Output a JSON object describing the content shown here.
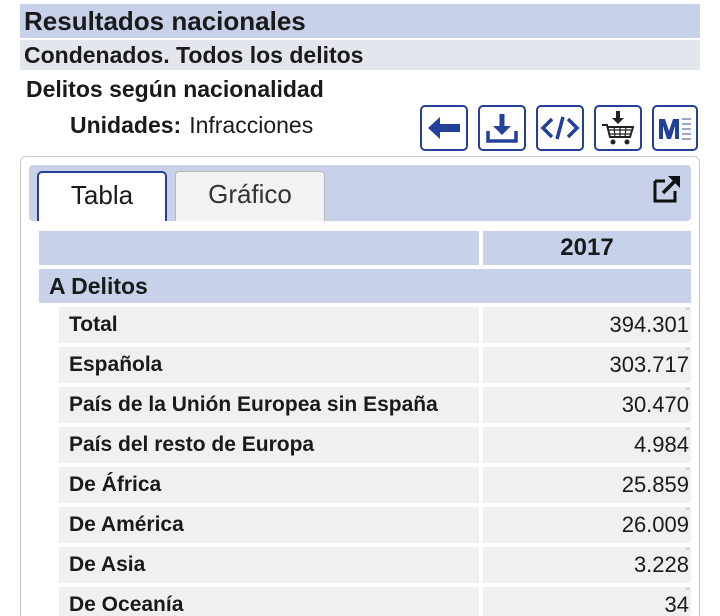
{
  "header": {
    "title": "Resultados nacionales",
    "subtitle": "Condenados. Todos los delitos",
    "section": "Delitos según nacionalidad",
    "units_label": "Unidades:",
    "units_value": "Infracciones"
  },
  "toolbar": {
    "icons": [
      "back-arrow-icon",
      "download-icon",
      "embed-code-icon",
      "download-cart-icon",
      "metadata-icon"
    ]
  },
  "tabs": {
    "table": "Tabla",
    "chart": "Gráfico"
  },
  "table": {
    "year": "2017",
    "group": "A Delitos",
    "rows": [
      {
        "label": "Total",
        "value": "394.301"
      },
      {
        "label": "Española",
        "value": "303.717"
      },
      {
        "label": "País de la Unión Europea sin España",
        "value": "30.470"
      },
      {
        "label": "País del resto de Europa",
        "value": "4.984"
      },
      {
        "label": "De África",
        "value": "25.859"
      },
      {
        "label": "De América",
        "value": "26.009"
      },
      {
        "label": "De Asia",
        "value": "3.228"
      },
      {
        "label": "De Oceanía",
        "value": "34"
      }
    ]
  },
  "colors": {
    "accent_blue": "#23409a",
    "header_bg": "#c7d2ea",
    "subheader_bg": "#e3e6ec",
    "cell_bg": "#f0f0f0"
  }
}
